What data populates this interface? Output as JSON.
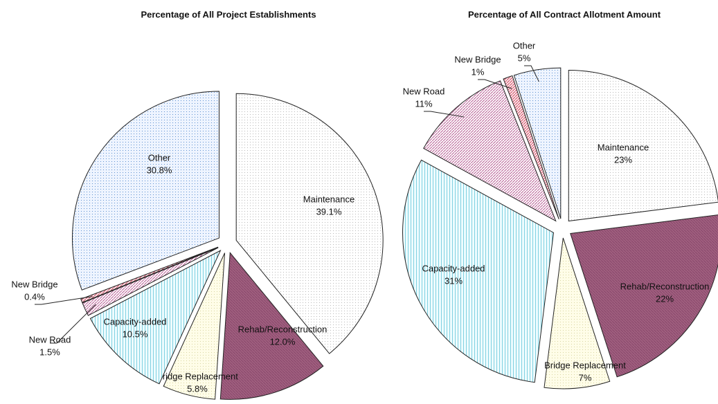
{
  "chart_data": [
    {
      "type": "pie",
      "title": "Percentage of All Project Establishments",
      "categories": [
        "Maintenance",
        "Rehab/Reconstruction",
        "Bridge Replacement",
        "Capacity-added",
        "New Road",
        "New Bridge",
        "Other"
      ],
      "values": [
        39.1,
        12.0,
        5.8,
        10.5,
        1.5,
        0.4,
        30.8
      ],
      "value_labels": [
        "39.1%",
        "12.0%",
        "5.8%",
        "10.5%",
        "1.5%",
        "0.4%",
        "30.8%"
      ],
      "colors": [
        "#b8b8b8",
        "#8c4a6e",
        "#d8d4a0",
        "#7fd0e0",
        "#c070a0",
        "#d06070",
        "#5b8fd0"
      ]
    },
    {
      "type": "pie",
      "title": "Percentage of All Contract Allotment Amount",
      "categories": [
        "Maintenance",
        "Rehab/Reconstruction",
        "Bridge Replacement",
        "Capacity-added",
        "New Road",
        "New Bridge",
        "Other"
      ],
      "values": [
        23,
        22,
        7,
        31,
        11,
        1,
        5
      ],
      "value_labels": [
        "23%",
        "22%",
        "7%",
        "31%",
        "11%",
        "1%",
        "5%"
      ],
      "colors": [
        "#b8b8b8",
        "#8c4a6e",
        "#d8d4a0",
        "#7fd0e0",
        "#c070a0",
        "#d06070",
        "#5b8fd0"
      ]
    }
  ]
}
